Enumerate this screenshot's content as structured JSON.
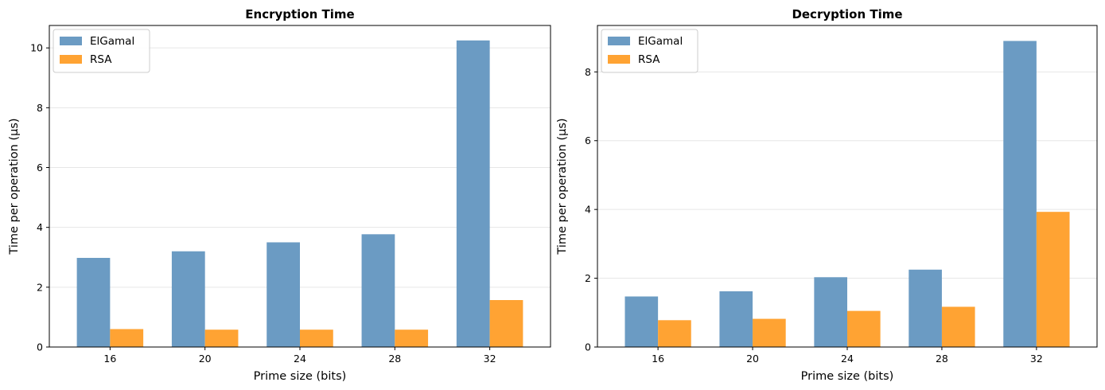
{
  "chart_data": [
    {
      "type": "bar",
      "title": "Encryption Time",
      "xlabel": "Prime size (bits)",
      "ylabel": "Time per operation (μs)",
      "categories": [
        "16",
        "20",
        "24",
        "28",
        "32"
      ],
      "series": [
        {
          "name": "ElGamal",
          "values": [
            2.98,
            3.2,
            3.5,
            3.77,
            10.25
          ],
          "color": "#6b9bc3"
        },
        {
          "name": "RSA",
          "values": [
            0.6,
            0.58,
            0.58,
            0.58,
            1.57
          ],
          "color": "#ffa333"
        }
      ],
      "ylim": [
        0,
        10.75
      ],
      "yticks": [
        0,
        2,
        4,
        6,
        8,
        10
      ],
      "ytick_labels": [
        "0",
        "2",
        "4",
        "6",
        "8",
        "10"
      ],
      "grid": "y",
      "legend_position": "top-left"
    },
    {
      "type": "bar",
      "title": "Decryption Time",
      "xlabel": "Prime size (bits)",
      "ylabel": "Time per operation (μs)",
      "categories": [
        "16",
        "20",
        "24",
        "28",
        "32"
      ],
      "series": [
        {
          "name": "ElGamal",
          "values": [
            1.47,
            1.62,
            2.03,
            2.25,
            8.9
          ],
          "color": "#6b9bc3"
        },
        {
          "name": "RSA",
          "values": [
            0.78,
            0.82,
            1.05,
            1.17,
            3.93
          ],
          "color": "#ffa333"
        }
      ],
      "ylim": [
        0,
        9.35
      ],
      "yticks": [
        0,
        2,
        4,
        6,
        8
      ],
      "ytick_labels": [
        "0",
        "2",
        "4",
        "6",
        "8"
      ],
      "grid": "y",
      "legend_position": "top-left"
    }
  ]
}
